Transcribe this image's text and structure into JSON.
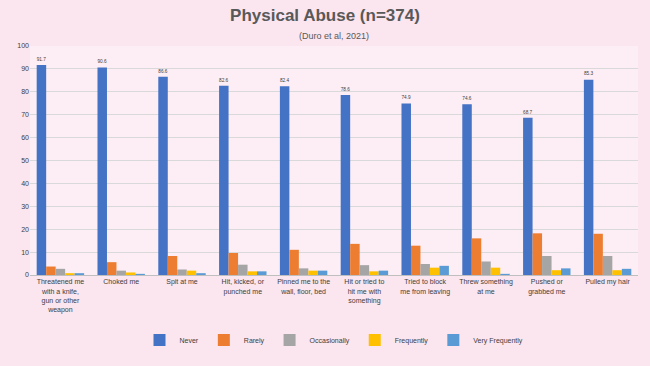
{
  "chart_data": {
    "type": "bar",
    "title": "Physical Abuse (n=374)",
    "subtitle": "(Duro et al, 2021)",
    "categories": [
      "Threatened me with a knife, gun or other weapon",
      "Choked me",
      "Spit at me",
      "Hit, kicked, or punched me",
      "Pinned me to the wall, floor, bed",
      "Hit or tried to hit me with something",
      "Tried to block me from leaving",
      "Threw something at me",
      "Pushed or grabbed me",
      "Pulled my hair"
    ],
    "series": [
      {
        "name": "Never",
        "color": "#4472c4",
        "data_labels": true,
        "values": [
          91.7,
          90.6,
          86.6,
          82.6,
          82.4,
          78.6,
          74.9,
          74.6,
          68.7,
          85.3
        ]
      },
      {
        "name": "Rarely",
        "color": "#ed7d31",
        "values": [
          3.7,
          5.6,
          8.3,
          9.6,
          11.0,
          13.6,
          12.8,
          16.0,
          18.2,
          18.0
        ]
      },
      {
        "name": "Occasionally",
        "color": "#a5a5a5",
        "values": [
          2.7,
          1.9,
          2.4,
          4.5,
          2.9,
          4.3,
          4.8,
          5.9,
          8.3,
          8.3
        ]
      },
      {
        "name": "Frequently",
        "color": "#ffc000",
        "values": [
          0.8,
          1.1,
          1.9,
          1.6,
          1.9,
          1.6,
          3.2,
          3.2,
          2.1,
          2.1
        ]
      },
      {
        "name": "Very Frequently",
        "color": "#5b9bd5",
        "values": [
          0.8,
          0.5,
          0.8,
          1.6,
          1.9,
          1.9,
          4.0,
          0.5,
          2.9,
          2.7
        ]
      }
    ],
    "ylim": [
      0,
      100
    ],
    "yticks": [
      0,
      10,
      20,
      30,
      40,
      50,
      60,
      70,
      80,
      90,
      100
    ],
    "grid": true,
    "legend": "bottom"
  }
}
